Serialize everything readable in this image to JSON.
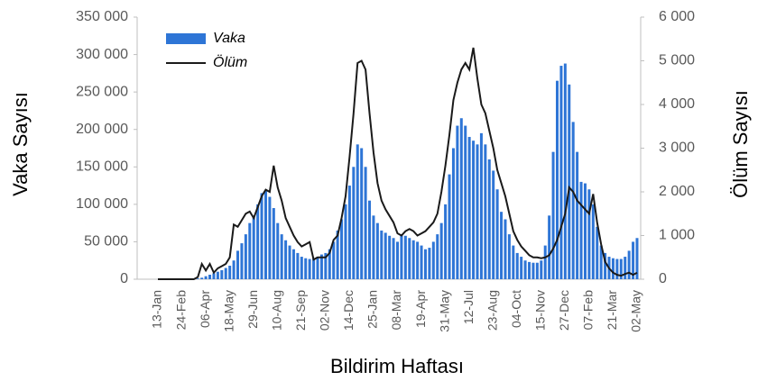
{
  "chart_data": {
    "type": "bar-line",
    "y_label": "Vaka Sayısı",
    "y2_label": "Ölüm Sayısı",
    "x_label": "Bildirim Haftası",
    "categories": [
      "13-Jan",
      null,
      null,
      null,
      null,
      null,
      "24-Feb",
      null,
      null,
      null,
      null,
      null,
      "06-Apr",
      null,
      null,
      null,
      null,
      null,
      "18-May",
      null,
      null,
      null,
      null,
      null,
      "29-Jun",
      null,
      null,
      null,
      null,
      null,
      "10-Aug",
      null,
      null,
      null,
      null,
      null,
      "21-Sep",
      null,
      null,
      null,
      null,
      null,
      "02-Nov",
      null,
      null,
      null,
      null,
      null,
      "14-Dec",
      null,
      null,
      null,
      null,
      null,
      "25-Jan",
      null,
      null,
      null,
      null,
      null,
      "08-Mar",
      null,
      null,
      null,
      null,
      null,
      "19-Apr",
      null,
      null,
      null,
      null,
      null,
      "31-May",
      null,
      null,
      null,
      null,
      null,
      "12-Jul",
      null,
      null,
      null,
      null,
      null,
      "23-Aug",
      null,
      null,
      null,
      null,
      null,
      "04-Oct",
      null,
      null,
      null,
      null,
      null,
      "15-Nov",
      null,
      null,
      null,
      null,
      null,
      "27-Dec",
      null,
      null,
      null,
      null,
      null,
      "07-Feb",
      null,
      null,
      null,
      null,
      null,
      "21-Mar",
      null,
      null,
      null,
      null,
      null,
      "02-May"
    ],
    "series": [
      {
        "name": "Vaka",
        "type": "bar",
        "color": "#2e75d6",
        "values": [
          0,
          0,
          0,
          0,
          0,
          0,
          0,
          0,
          0,
          0,
          1000,
          2000,
          4000,
          6000,
          8000,
          10000,
          12000,
          15000,
          18000,
          25000,
          38000,
          48000,
          60000,
          75000,
          85000,
          100000,
          115000,
          118000,
          110000,
          95000,
          75000,
          60000,
          52000,
          45000,
          40000,
          35000,
          30000,
          28000,
          27000,
          28000,
          30000,
          33000,
          35000,
          40000,
          50000,
          65000,
          80000,
          100000,
          125000,
          150000,
          180000,
          175000,
          150000,
          105000,
          85000,
          75000,
          65000,
          62000,
          58000,
          55000,
          50000,
          60000,
          58000,
          55000,
          52000,
          50000,
          45000,
          40000,
          42000,
          50000,
          60000,
          75000,
          100000,
          140000,
          175000,
          205000,
          215000,
          205000,
          190000,
          185000,
          180000,
          195000,
          180000,
          160000,
          145000,
          120000,
          90000,
          80000,
          60000,
          45000,
          35000,
          30000,
          25000,
          23000,
          22000,
          22000,
          25000,
          45000,
          85000,
          170000,
          265000,
          285000,
          288000,
          260000,
          210000,
          170000,
          130000,
          128000,
          120000,
          100000,
          70000,
          45000,
          35000,
          30000,
          28000,
          27000,
          27000,
          30000,
          38000,
          50000,
          55000
        ]
      },
      {
        "name": "Ölüm",
        "type": "line",
        "axis": "y2",
        "color": "#1a1a1a",
        "values": [
          0,
          0,
          0,
          0,
          0,
          0,
          0,
          0,
          0,
          0,
          50,
          350,
          200,
          350,
          150,
          250,
          300,
          350,
          500,
          1250,
          1200,
          1350,
          1500,
          1550,
          1400,
          1650,
          1900,
          2050,
          2000,
          2600,
          2100,
          1800,
          1400,
          1200,
          1000,
          850,
          750,
          800,
          850,
          450,
          500,
          500,
          500,
          600,
          900,
          1000,
          1400,
          1900,
          2800,
          3800,
          4950,
          5000,
          4800,
          3800,
          2900,
          2200,
          1800,
          1600,
          1450,
          1300,
          1050,
          1000,
          1100,
          1150,
          1100,
          1000,
          1050,
          1100,
          1200,
          1300,
          1500,
          2000,
          2600,
          3300,
          4100,
          4500,
          4800,
          4950,
          4800,
          5300,
          4600,
          4000,
          3800,
          3400,
          3000,
          2500,
          2200,
          1900,
          1500,
          1100,
          900,
          750,
          650,
          550,
          500,
          500,
          480,
          500,
          550,
          700,
          900,
          1200,
          1500,
          2100,
          2000,
          1800,
          1700,
          1600,
          1500,
          1950,
          1300,
          800,
          400,
          250,
          150,
          100,
          80,
          120,
          150,
          100,
          150
        ]
      }
    ],
    "ylim": [
      0,
      350000
    ],
    "yticks": [
      0,
      {
        "value": 50000,
        "label": "50 000"
      },
      {
        "value": 100000,
        "label": "100 000"
      },
      {
        "value": 150000,
        "label": "150 000"
      },
      {
        "value": 200000,
        "label": "200 000"
      },
      {
        "value": 250000,
        "label": "250 000"
      },
      {
        "value": 300000,
        "label": "300 000"
      },
      {
        "value": 350000,
        "label": "350 000"
      }
    ],
    "y2lim": [
      0,
      6000
    ],
    "y2ticks": [
      0,
      {
        "value": 1000,
        "label": "1 000"
      },
      {
        "value": 2000,
        "label": "2 000"
      },
      {
        "value": 3000,
        "label": "3 000"
      },
      {
        "value": 4000,
        "label": "4 000"
      },
      {
        "value": 5000,
        "label": "5 000"
      },
      {
        "value": 6000,
        "label": "6 000"
      }
    ],
    "legend": "upper left",
    "grid": false
  }
}
